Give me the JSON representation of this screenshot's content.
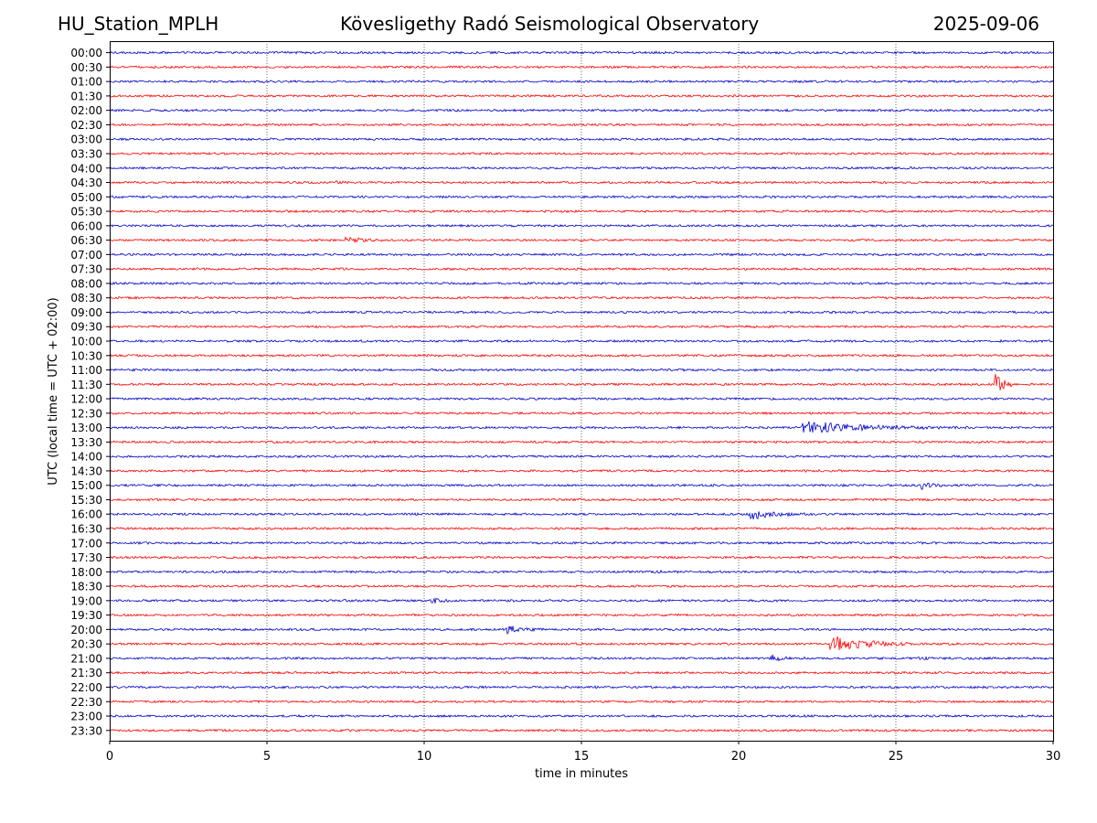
{
  "header": {
    "station": "HU_Station_MPLH",
    "title": "Kövesligethy Radó Seismological Observatory",
    "date": "2025-09-06"
  },
  "chart_data": {
    "type": "line",
    "xlabel": "time in minutes",
    "ylabel": "UTC (local time = UTC + 02:00)",
    "xlim": [
      0,
      30
    ],
    "xticks": [
      0,
      5,
      10,
      15,
      20,
      25,
      30
    ],
    "grid": "vertical dotted at x ticks",
    "rows": [
      "00:00",
      "00:30",
      "01:00",
      "01:30",
      "02:00",
      "02:30",
      "03:00",
      "03:30",
      "04:00",
      "04:30",
      "05:00",
      "05:30",
      "06:00",
      "06:30",
      "07:00",
      "07:30",
      "08:00",
      "08:30",
      "09:00",
      "09:30",
      "10:00",
      "10:30",
      "11:00",
      "11:30",
      "12:00",
      "12:30",
      "13:00",
      "13:30",
      "14:00",
      "14:30",
      "15:00",
      "15:30",
      "16:00",
      "16:30",
      "17:00",
      "17:30",
      "18:00",
      "18:30",
      "19:00",
      "19:30",
      "20:00",
      "20:30",
      "21:00",
      "21:30",
      "22:00",
      "22:30",
      "23:00",
      "23:30"
    ],
    "colors": [
      "#0000cc",
      "#ff0000"
    ],
    "events": [
      {
        "row": "04:30",
        "start": 7.2,
        "duration": 0.4,
        "amplitude": 0.2
      },
      {
        "row": "06:30",
        "start": 7.5,
        "duration": 1.2,
        "amplitude": 0.55
      },
      {
        "row": "07:00",
        "start": 12.1,
        "duration": 0.3,
        "amplitude": 0.15
      },
      {
        "row": "09:30",
        "start": 3.8,
        "duration": 0.3,
        "amplitude": 0.15
      },
      {
        "row": "11:30",
        "start": 28.1,
        "duration": 0.6,
        "amplitude": 3.0
      },
      {
        "row": "13:00",
        "start": 22.0,
        "duration": 4.5,
        "amplitude": 1.1
      },
      {
        "row": "15:00",
        "start": 25.8,
        "duration": 0.8,
        "amplitude": 0.6
      },
      {
        "row": "16:00",
        "start": 20.3,
        "duration": 1.8,
        "amplitude": 1.0
      },
      {
        "row": "16:30",
        "start": 18.5,
        "duration": 1.2,
        "amplitude": 0.12
      },
      {
        "row": "18:00",
        "start": 17.4,
        "duration": 0.4,
        "amplitude": 0.15
      },
      {
        "row": "19:00",
        "start": 10.2,
        "duration": 0.8,
        "amplitude": 0.55
      },
      {
        "row": "20:00",
        "start": 12.6,
        "duration": 1.2,
        "amplitude": 0.7
      },
      {
        "row": "20:30",
        "start": 22.9,
        "duration": 3.0,
        "amplitude": 1.2
      },
      {
        "row": "21:00",
        "start": 21.0,
        "duration": 1.3,
        "amplitude": 0.4
      },
      {
        "row": "21:00",
        "start": 25.7,
        "duration": 0.8,
        "amplitude": 0.15
      }
    ]
  }
}
